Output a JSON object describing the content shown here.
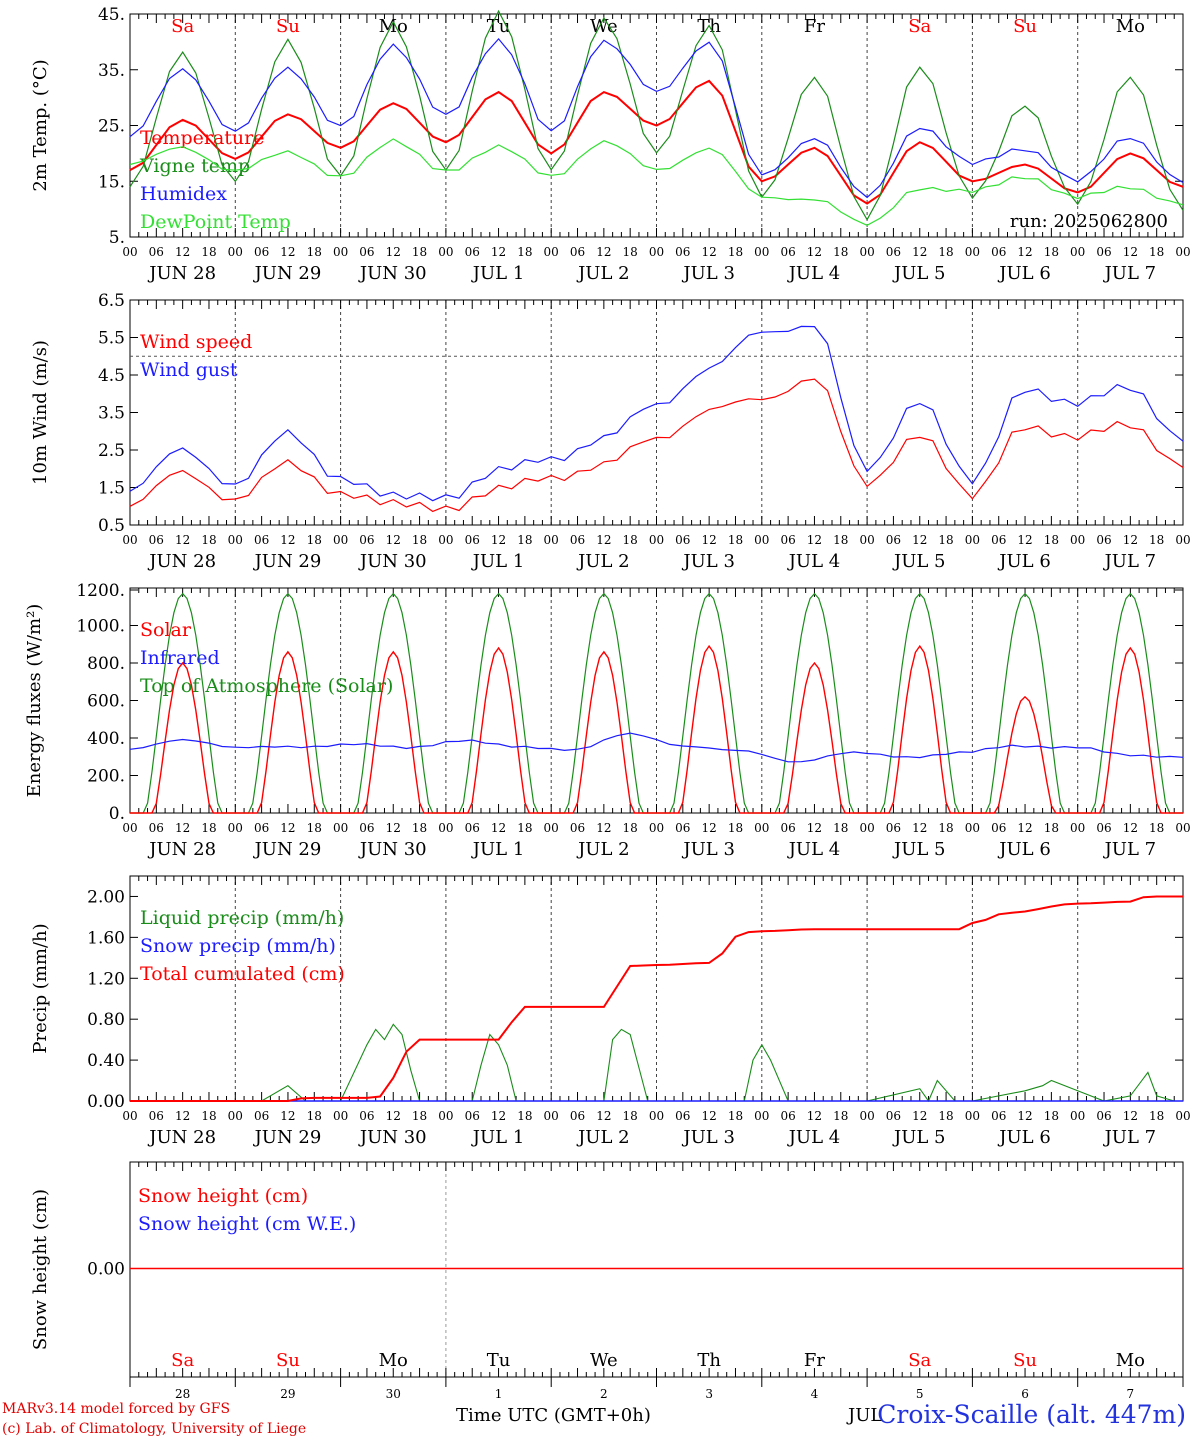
{
  "colors": {
    "red": "#ff0000",
    "green": "#1a8c1a",
    "blue": "#1c1cff",
    "lightgreen": "#33e033",
    "axis": "#000000",
    "sat_sun": "#ff0000"
  },
  "x_axis": {
    "hour_ticks": [
      "00",
      "06",
      "12",
      "18"
    ],
    "dates": [
      "JUN 28",
      "JUN 29",
      "JUN 30",
      "JUL  1",
      "JUL  2",
      "JUL  3",
      "JUL  4",
      "JUL  5",
      "JUL  6",
      "JUL  7"
    ],
    "weekdays": [
      "Sa",
      "Su",
      "Mo",
      "Tu",
      "We",
      "Th",
      "Fr",
      "Sa",
      "Su",
      "Mo"
    ],
    "day_numbers": [
      "28",
      "29",
      "30",
      "1",
      "2",
      "3",
      "4",
      "5",
      "6",
      "7"
    ],
    "month_label": "JUL",
    "title": "Time UTC (GMT+0h)"
  },
  "run_label": "run: 2025062800",
  "credits": [
    "MARv3.14 model forced by GFS",
    "(c) Lab. of Climatology, University of Liege"
  ],
  "station": "Croix-Scaille (alt. 447m)",
  "chart_data": [
    {
      "type": "line",
      "ylabel": "2m Temp. (°C)",
      "ylim": [
        5,
        45
      ],
      "yticks": [
        "5.",
        "15.",
        "25.",
        "35.",
        "45."
      ],
      "grid": "vertical dashed at day boundaries",
      "legend_placement": "left",
      "x_hours": [
        0,
        12,
        24,
        36,
        48,
        60,
        72,
        84,
        96,
        108,
        120,
        132,
        144,
        156,
        168,
        180,
        192,
        204,
        216,
        228,
        240
      ],
      "series": [
        {
          "name": "Temperature",
          "color": "#ff0000",
          "values": [
            17,
            26,
            19,
            27,
            21,
            29,
            22,
            31,
            20,
            31,
            25,
            33,
            15,
            21,
            11,
            22,
            15,
            18,
            13,
            20,
            14
          ]
        },
        {
          "name": "Vigne temp",
          "color": "#1a8c1a",
          "values": [
            14,
            38,
            15,
            40,
            16,
            43,
            17,
            45,
            17,
            44,
            20,
            43,
            12,
            34,
            8,
            36,
            12,
            29,
            11,
            34,
            10
          ]
        },
        {
          "name": "Humidex",
          "color": "#1c1cff",
          "values": [
            23,
            35,
            24,
            35,
            25,
            39,
            27,
            40,
            24,
            40,
            31,
            40,
            16,
            23,
            12,
            25,
            18,
            21,
            15,
            23,
            15
          ]
        },
        {
          "name": "DewPoint Temp",
          "color": "#33e033",
          "values": [
            18,
            21,
            17,
            20,
            16,
            22,
            17,
            21,
            16,
            22,
            17,
            21,
            12,
            12,
            7,
            14,
            13,
            16,
            12,
            14,
            11
          ]
        }
      ]
    },
    {
      "type": "line",
      "ylabel": "10m Wind (m/s)",
      "ylim": [
        0.5,
        6.5
      ],
      "yticks": [
        "0.5",
        "1.5",
        "2.5",
        "3.5",
        "4.5",
        "5.5",
        "6.5"
      ],
      "reference_line": 5.0,
      "legend_placement": "left",
      "x_hours": [
        0,
        12,
        24,
        36,
        48,
        60,
        72,
        84,
        96,
        108,
        120,
        132,
        144,
        156,
        168,
        180,
        192,
        204,
        216,
        228,
        240
      ],
      "series": [
        {
          "name": "Wind speed",
          "color": "#ff0000",
          "values": [
            1.0,
            1.9,
            1.2,
            2.1,
            1.4,
            1.0,
            1.0,
            1.4,
            1.8,
            2.1,
            2.8,
            3.6,
            3.8,
            4.5,
            1.5,
            3.0,
            1.2,
            3.2,
            2.8,
            3.2,
            2.1
          ]
        },
        {
          "name": "Wind gust",
          "color": "#1c1cff",
          "values": [
            1.4,
            2.5,
            1.6,
            2.9,
            1.8,
            1.2,
            1.3,
            1.9,
            2.3,
            2.8,
            3.7,
            4.7,
            5.6,
            5.9,
            1.9,
            3.9,
            1.6,
            4.2,
            3.7,
            4.2,
            2.8
          ]
        }
      ]
    },
    {
      "type": "line",
      "ylabel": "Energy fluxes (W/m²)",
      "ylim": [
        0,
        1200
      ],
      "yticks": [
        "0.",
        "200.",
        "400.",
        "600.",
        "800.",
        "1000.",
        "1200."
      ],
      "legend_placement": "left",
      "series": [
        {
          "name": "Solar",
          "color": "#ff0000",
          "daily_peaks": [
            800,
            860,
            860,
            880,
            860,
            890,
            800,
            890,
            620,
            880
          ]
        },
        {
          "name": "Infrared",
          "color": "#1c1cff",
          "values": [
            340,
            390,
            350,
            350,
            370,
            345,
            390,
            350,
            340,
            420,
            360,
            330,
            275,
            320,
            300,
            320,
            360,
            350,
            310,
            300
          ]
        },
        {
          "name": "Top of Atmosphere (Solar)",
          "color": "#1a8c1a",
          "daily_peaks": [
            1170,
            1170,
            1170,
            1170,
            1170,
            1170,
            1170,
            1170,
            1170,
            1170
          ]
        }
      ]
    },
    {
      "type": "line",
      "ylabel": "Precip (mm/h)",
      "ylim": [
        0,
        2.2
      ],
      "yticks": [
        "0.00",
        "0.40",
        "0.80",
        "1.20",
        "1.60",
        "2.00"
      ],
      "legend_placement": "left",
      "series": [
        {
          "name": "Liquid precip (mm/h)",
          "color": "#1a8c1a",
          "x_hours": [
            0,
            30,
            36,
            40,
            42,
            48,
            54,
            56,
            58,
            60,
            62,
            64,
            66,
            68,
            72,
            78,
            80,
            82,
            84,
            86,
            88,
            90,
            96,
            108,
            110,
            112,
            114,
            118,
            120,
            132,
            140,
            142,
            144,
            146,
            150,
            156,
            168,
            180,
            182,
            184,
            188,
            192,
            204,
            208,
            210,
            216,
            222,
            228,
            232,
            234,
            238,
            240
          ],
          "values": [
            0,
            0,
            0.15,
            0,
            0,
            0,
            0.55,
            0.7,
            0.6,
            0.75,
            0.65,
            0.3,
            0,
            0,
            0,
            0,
            0.35,
            0.65,
            0.55,
            0.35,
            0,
            0,
            0,
            0,
            0.6,
            0.7,
            0.65,
            0,
            0,
            0,
            0,
            0.4,
            0.55,
            0.4,
            0,
            0,
            0,
            0.12,
            0,
            0.2,
            0,
            0,
            0.1,
            0.15,
            0.2,
            0.1,
            0,
            0.05,
            0.28,
            0.05,
            0,
            0
          ]
        },
        {
          "name": "Snow precip (mm/h)",
          "color": "#1c1cff",
          "values": [
            0,
            0,
            0,
            0,
            0,
            0,
            0,
            0,
            0,
            0
          ]
        },
        {
          "name": "Total cumulated (cm)",
          "color": "#ff0000",
          "x_hours": [
            0,
            36,
            40,
            56,
            66,
            72,
            84,
            88,
            90,
            96,
            108,
            114,
            120,
            132,
            140,
            144,
            156,
            168,
            190,
            192,
            200,
            216,
            228,
            232,
            240
          ],
          "values": [
            0,
            0,
            0.03,
            0.03,
            0.6,
            0.6,
            0.6,
            0.8,
            0.92,
            0.92,
            0.92,
            1.32,
            1.33,
            1.35,
            1.65,
            1.66,
            1.68,
            1.68,
            1.68,
            1.74,
            1.84,
            1.93,
            1.95,
            2.0,
            2.0
          ]
        }
      ]
    },
    {
      "type": "line",
      "ylabel": "Snow height (cm)",
      "yticks": [
        "0.00"
      ],
      "legend_placement": "left",
      "series": [
        {
          "name": "Snow height (cm)",
          "color": "#ff0000",
          "values": [
            0,
            0
          ]
        },
        {
          "name": "Snow height (cm W.E.)",
          "color": "#1c1cff",
          "values": [
            0,
            0
          ]
        }
      ]
    }
  ]
}
